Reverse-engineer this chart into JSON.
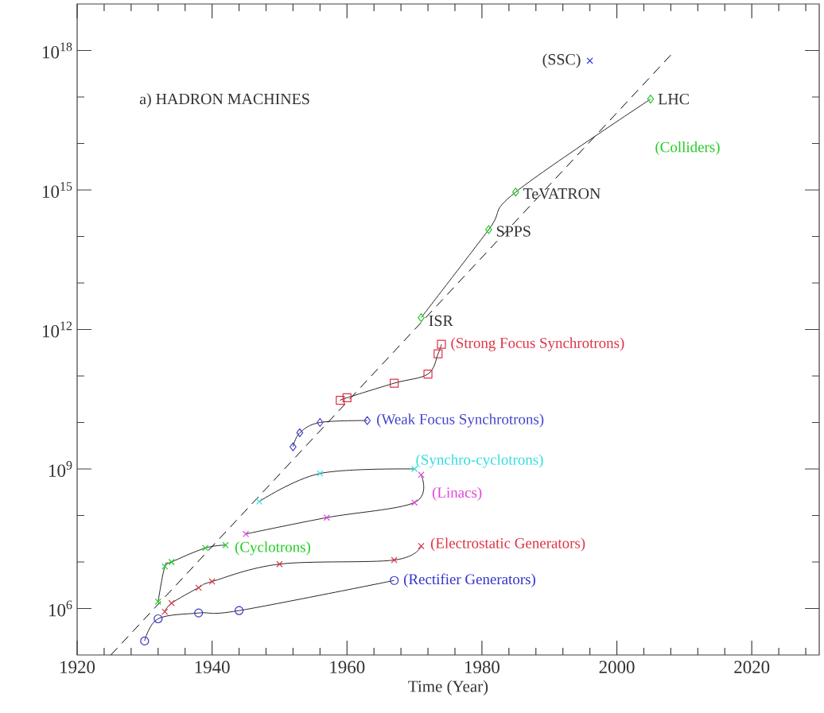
{
  "chart_data": {
    "type": "line",
    "title": "a) HADRON MACHINES",
    "xlabel": "Time (Year)",
    "log": "y",
    "xlim": [
      1920,
      2030
    ],
    "ylim": [
      100000.0,
      1e+19
    ],
    "xticks": [
      1920,
      {
        "value": 1924,
        "label": null
      },
      {
        "value": 1928,
        "label": null
      },
      {
        "value": 1932,
        "label": null
      },
      {
        "value": 1936,
        "label": null
      },
      1940,
      {
        "value": 1944,
        "label": null
      },
      {
        "value": 1948,
        "label": null
      },
      {
        "value": 1952,
        "label": null
      },
      {
        "value": 1956,
        "label": null
      },
      1960,
      {
        "value": 1964,
        "label": null
      },
      {
        "value": 1968,
        "label": null
      },
      {
        "value": 1972,
        "label": null
      },
      {
        "value": 1976,
        "label": null
      },
      1980,
      {
        "value": 1984,
        "label": null
      },
      {
        "value": 1988,
        "label": null
      },
      {
        "value": 1992,
        "label": null
      },
      {
        "value": 1996,
        "label": null
      },
      2000,
      {
        "value": 2004,
        "label": null
      },
      {
        "value": 2008,
        "label": null
      },
      {
        "value": 2012,
        "label": null
      },
      {
        "value": 2016,
        "label": null
      },
      2020,
      {
        "value": 2024,
        "label": null
      },
      {
        "value": 2028,
        "label": null
      }
    ],
    "yticks": [
      {
        "value": 1000000.0,
        "label": "10$^{6}$"
      },
      {
        "value": 10000000.0,
        "label": null
      },
      {
        "value": 100000000.0,
        "label": null
      },
      {
        "value": 1000000000.0,
        "label": "10$^{9}$"
      },
      {
        "value": 10000000000.0,
        "label": null
      },
      {
        "value": 100000000000.0,
        "label": null
      },
      {
        "value": 1000000000000.0,
        "label": "10$^{12}$"
      },
      {
        "value": 10000000000000.0,
        "label": null
      },
      {
        "value": 100000000000000.0,
        "label": null
      },
      {
        "value": 1000000000000000.0,
        "label": "10$^{15}$"
      },
      {
        "value": 1e+16,
        "label": null
      },
      {
        "value": 1e+17,
        "label": null
      },
      {
        "value": 1e+18,
        "label": "10$^{18}$"
      }
    ],
    "series": [
      {
        "name": "(Rectifier Generators)",
        "color": "#3333cc",
        "marker": "circle",
        "x": [
          1930,
          1932,
          1938,
          1944,
          1967
        ],
        "values": [
          200000.0,
          600000.0,
          800000.0,
          900000.0,
          4000000.0
        ]
      },
      {
        "name": "(Electrostatic Generators)",
        "color": "#dd3344",
        "marker": "cross",
        "x": [
          1933,
          1934,
          1938,
          1940,
          1950,
          1967,
          1971
        ],
        "values": [
          850000.0,
          1300000.0,
          2800000.0,
          3800000.0,
          9000000.0,
          11000000.0,
          22000000.0
        ]
      },
      {
        "name": "(Cyclotrons)",
        "color": "#22cc22",
        "marker": "cross",
        "x": [
          1932,
          1933,
          1934,
          1939,
          1942
        ],
        "values": [
          1400000.0,
          8000000.0,
          10000000.0,
          20000000.0,
          23000000.0
        ]
      },
      {
        "name": "(Linacs)",
        "color": "#dd44dd",
        "marker": "cross",
        "x": [
          1945,
          1957,
          1970,
          1971
        ],
        "values": [
          40000000.0,
          90000000.0,
          190000000.0,
          750000000.0
        ]
      },
      {
        "name": "(Synchro-cyclotrons)",
        "color": "#33dddd",
        "marker": "cross",
        "x": [
          1947,
          1956,
          1970
        ],
        "values": [
          200000000.0,
          800000000.0,
          1000000000.0
        ]
      },
      {
        "name": "(Weak Focus Synchrotrons)",
        "color": "#4444cc",
        "marker": "diamond",
        "x": [
          1952,
          1953,
          1956,
          1963
        ],
        "values": [
          3000000000.0,
          6000000000.0,
          10000000000.0,
          11000000000.0
        ]
      },
      {
        "name": "(Strong Focus Synchrotrons)",
        "color": "#dd3344",
        "marker": "square",
        "x": [
          1959,
          1960,
          1967,
          1972,
          1973.5,
          1974
        ],
        "values": [
          30000000000.0,
          34000000000.0,
          70000000000.0,
          110000000000.0,
          300000000000.0,
          480000000000.0
        ]
      },
      {
        "name": "(Colliders)",
        "color": "#22cc22",
        "marker": "diamond",
        "x": [
          1971,
          1981,
          1985,
          2005
        ],
        "values": [
          1800000000000.0,
          140000000000000.0,
          900000000000000.0,
          9e+16
        ]
      },
      {
        "type": "scatter",
        "color": "#3333dd",
        "marker": "cross",
        "x": [
          1996
        ],
        "values": [
          6e+17
        ]
      },
      {
        "color": "#000000",
        "marker": "none",
        "line_style": "dashed",
        "x": [
          1925,
          2008
        ],
        "values": [
          100000.0,
          8e+17
        ]
      }
    ],
    "annotations": [
      {
        "text": "(SSC)",
        "x": 1996,
        "y": 6e+17
      },
      {
        "text": "LHC",
        "x": 2005,
        "y": 9e+16
      },
      {
        "text": "TeVATRON",
        "x": 1985,
        "y": 900000000000000.0
      },
      {
        "text": "SPPS",
        "x": 1981,
        "y": 140000000000000.0
      },
      {
        "text": "ISR",
        "x": 1971,
        "y": 1800000000000.0
      }
    ]
  }
}
